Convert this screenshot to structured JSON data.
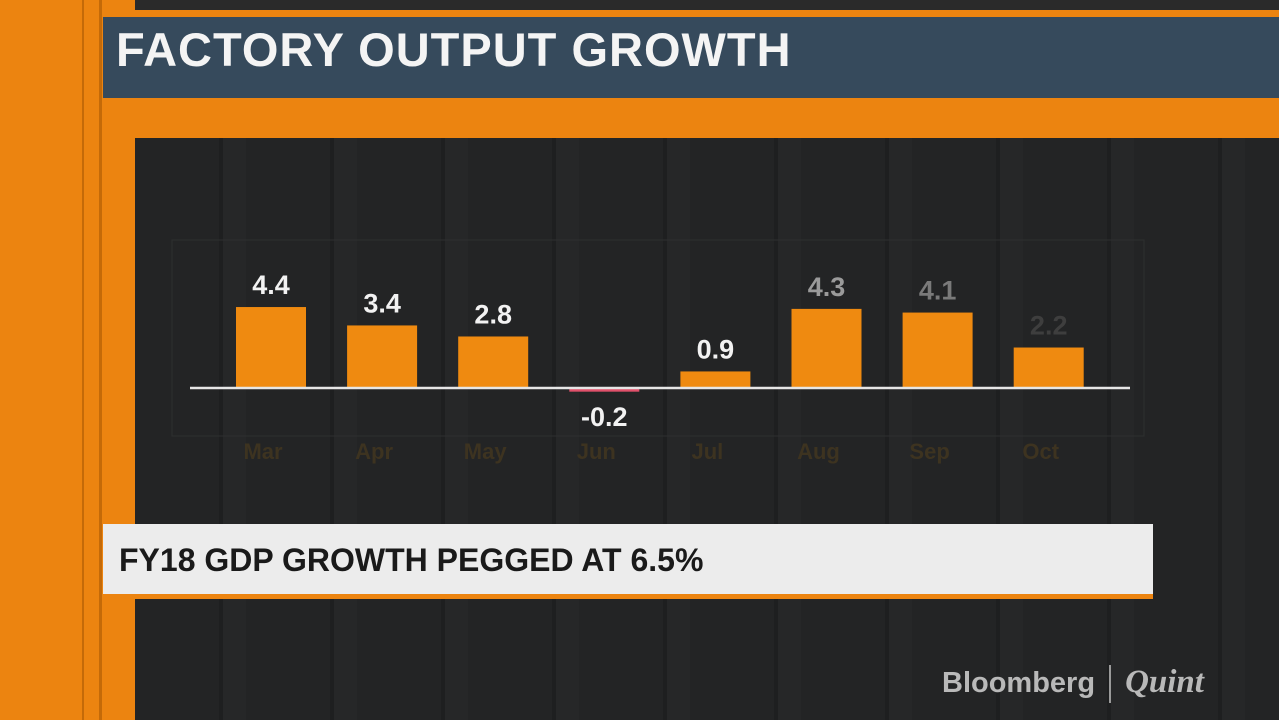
{
  "title": "FACTORY OUTPUT GROWTH",
  "banner": "FY18 GDP GROWTH PEGGED AT 6.5%",
  "logo": {
    "left": "Bloomberg",
    "right": "Quint"
  },
  "colors": {
    "bar": "#ef8a10",
    "negative_bar": "#e0506a",
    "title_bg": "#364a5c",
    "accent": "#ec8410"
  },
  "chart_data": {
    "type": "bar",
    "title": "FACTORY OUTPUT GROWTH",
    "categories": [
      "Mar",
      "Apr",
      "May",
      "Jun",
      "Jul",
      "Aug",
      "Sep",
      "Oct"
    ],
    "values": [
      4.4,
      3.4,
      2.8,
      -0.2,
      0.9,
      4.3,
      4.1,
      2.2
    ],
    "data_labels": [
      "4.4",
      "3.4",
      "2.8",
      "-0.2",
      "0.9",
      "4.3",
      "4.1",
      "2.2"
    ],
    "ylim": [
      -0.5,
      5.5
    ],
    "grid": false,
    "xlabel": "",
    "ylabel": ""
  }
}
